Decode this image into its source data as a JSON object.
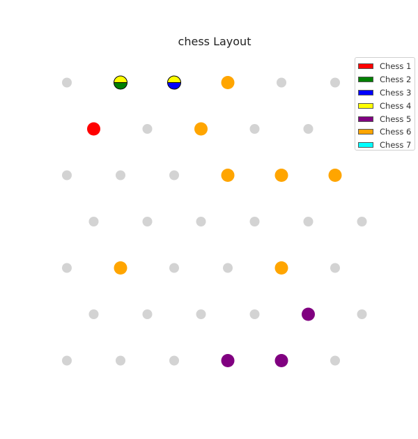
{
  "title": "chess Layout",
  "legend": {
    "placement": "top-right",
    "items": [
      {
        "label": "Chess 1",
        "color": "#ff0000"
      },
      {
        "label": "Chess 2",
        "color": "#008000"
      },
      {
        "label": "Chess 3",
        "color": "#0000ff"
      },
      {
        "label": "Chess 4",
        "color": "#ffff00"
      },
      {
        "label": "Chess 5",
        "color": "#800080"
      },
      {
        "label": "Chess 6",
        "color": "#ffa500"
      },
      {
        "label": "Chess 7",
        "color": "#00ffff"
      }
    ]
  },
  "board": {
    "rows": 7,
    "empty_color": "#d3d3d3",
    "row_lengths": [
      6,
      5,
      6,
      6,
      6,
      6,
      6
    ],
    "row_offsets": [
      0,
      0.5,
      0,
      0.5,
      0,
      0.5,
      0
    ],
    "pieces": [
      {
        "row": 0,
        "col": 1,
        "colors": [
          "yellow",
          "green"
        ]
      },
      {
        "row": 0,
        "col": 2,
        "colors": [
          "yellow",
          "blue"
        ]
      },
      {
        "row": 0,
        "col": 3,
        "colors": [
          "orange"
        ]
      },
      {
        "row": 1,
        "col": 0,
        "colors": [
          "red"
        ]
      },
      {
        "row": 1,
        "col": 2,
        "colors": [
          "orange"
        ]
      },
      {
        "row": 2,
        "col": 3,
        "colors": [
          "orange"
        ]
      },
      {
        "row": 2,
        "col": 4,
        "colors": [
          "orange"
        ]
      },
      {
        "row": 2,
        "col": 5,
        "colors": [
          "orange"
        ]
      },
      {
        "row": 4,
        "col": 1,
        "colors": [
          "orange"
        ]
      },
      {
        "row": 4,
        "col": 4,
        "colors": [
          "orange"
        ]
      },
      {
        "row": 5,
        "col": 4,
        "colors": [
          "purple"
        ]
      },
      {
        "row": 6,
        "col": 3,
        "colors": [
          "purple"
        ]
      },
      {
        "row": 6,
        "col": 4,
        "colors": [
          "purple"
        ]
      }
    ]
  }
}
